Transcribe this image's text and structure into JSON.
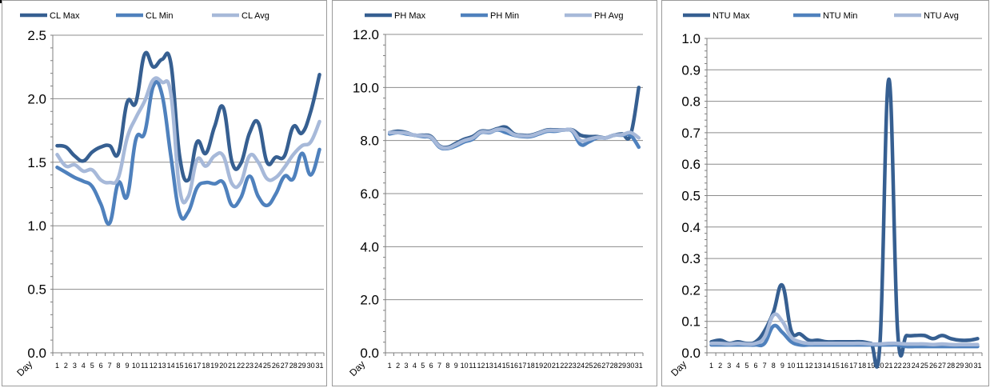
{
  "chart_data": [
    {
      "type": "line",
      "x_axis_name": "Day",
      "x": [
        1,
        2,
        3,
        4,
        5,
        6,
        7,
        8,
        9,
        10,
        11,
        12,
        13,
        14,
        15,
        16,
        17,
        18,
        19,
        20,
        21,
        22,
        23,
        24,
        25,
        26,
        27,
        28,
        29,
        30,
        31
      ],
      "x_labels": [
        "1",
        "2",
        "3",
        "4",
        "5",
        "6",
        "7",
        "8",
        "9",
        "10",
        "11",
        "12",
        "13",
        "14",
        "15",
        "16",
        "17",
        "18",
        "19",
        "20",
        "21",
        "22",
        "23",
        "24",
        "25",
        "26",
        "27",
        "28",
        "29",
        "30",
        "31"
      ],
      "ylim": [
        0,
        2.5
      ],
      "y_ticks": [
        0,
        0.5,
        1.0,
        1.5,
        2.0,
        2.5
      ],
      "y_tick_labels": [
        "0.0",
        "0.5",
        "1.0",
        "1.5",
        "2.0",
        "2.5"
      ],
      "grid": true,
      "legend_position": "top",
      "series": [
        {
          "name": "CL Max",
          "color": "#365f91",
          "values": [
            1.63,
            1.62,
            1.55,
            1.51,
            1.58,
            1.62,
            1.63,
            1.57,
            1.97,
            1.97,
            2.35,
            2.25,
            2.31,
            2.28,
            1.55,
            1.36,
            1.66,
            1.57,
            1.78,
            1.93,
            1.5,
            1.49,
            1.73,
            1.81,
            1.5,
            1.54,
            1.55,
            1.78,
            1.73,
            1.9,
            2.19
          ]
        },
        {
          "name": "CL Min",
          "color": "#4f81bd",
          "values": [
            1.46,
            1.42,
            1.38,
            1.35,
            1.31,
            1.17,
            1.02,
            1.34,
            1.23,
            1.68,
            1.73,
            2.1,
            2.03,
            1.55,
            1.1,
            1.11,
            1.3,
            1.34,
            1.33,
            1.34,
            1.16,
            1.22,
            1.39,
            1.23,
            1.16,
            1.25,
            1.39,
            1.37,
            1.57,
            1.4,
            1.6
          ]
        },
        {
          "name": "CL Avg",
          "color": "#a7b9d9",
          "values": [
            1.56,
            1.47,
            1.48,
            1.43,
            1.44,
            1.36,
            1.34,
            1.38,
            1.69,
            1.85,
            1.98,
            2.15,
            2.13,
            2.04,
            1.29,
            1.23,
            1.52,
            1.47,
            1.55,
            1.55,
            1.33,
            1.34,
            1.55,
            1.5,
            1.37,
            1.38,
            1.46,
            1.56,
            1.63,
            1.66,
            1.82
          ]
        }
      ]
    },
    {
      "type": "line",
      "x_axis_name": "Day",
      "x": [
        1,
        2,
        3,
        4,
        5,
        6,
        7,
        8,
        9,
        10,
        11,
        12,
        13,
        14,
        15,
        16,
        17,
        18,
        19,
        20,
        21,
        22,
        23,
        24,
        25,
        26,
        27,
        28,
        29,
        30,
        31
      ],
      "x_labels": [
        "1",
        "2",
        "3",
        "4",
        "5",
        "6",
        "7",
        "8",
        "9",
        "10",
        "11",
        "12",
        "13",
        "14",
        "15",
        "16",
        "17",
        "18",
        "19",
        "20",
        "21",
        "22",
        "23",
        "24",
        "25",
        "26",
        "27",
        "28",
        "29",
        "30",
        "31"
      ],
      "ylim": [
        0,
        12
      ],
      "y_ticks": [
        0,
        2,
        4,
        6,
        8,
        10,
        12
      ],
      "y_tick_labels": [
        "0.0",
        "2.0",
        "4.0",
        "6.0",
        "8.0",
        "10.0",
        "12.0"
      ],
      "grid": true,
      "legend_position": "top",
      "series": [
        {
          "name": "PH Max",
          "color": "#365f91",
          "values": [
            8.3,
            8.35,
            8.3,
            8.2,
            8.2,
            8.15,
            7.8,
            7.75,
            7.9,
            8.05,
            8.15,
            8.35,
            8.35,
            8.45,
            8.5,
            8.25,
            8.2,
            8.2,
            8.3,
            8.4,
            8.4,
            8.4,
            8.4,
            8.2,
            8.15,
            8.15,
            8.1,
            8.2,
            8.25,
            8.2,
            10.0
          ]
        },
        {
          "name": "PH Min",
          "color": "#4f81bd",
          "values": [
            8.25,
            8.3,
            8.25,
            8.2,
            8.15,
            8.1,
            7.75,
            7.7,
            7.8,
            7.95,
            8.05,
            8.3,
            8.3,
            8.4,
            8.3,
            8.2,
            8.15,
            8.15,
            8.25,
            8.35,
            8.35,
            8.4,
            8.35,
            7.85,
            7.95,
            8.1,
            8.1,
            8.2,
            8.2,
            8.2,
            7.75
          ]
        },
        {
          "name": "PH Avg",
          "color": "#a7b9d9",
          "values": [
            8.3,
            8.3,
            8.28,
            8.2,
            8.18,
            8.12,
            7.78,
            7.72,
            7.85,
            8.0,
            8.1,
            8.32,
            8.32,
            8.42,
            8.4,
            8.22,
            8.18,
            8.18,
            8.28,
            8.38,
            8.38,
            8.4,
            8.38,
            8.0,
            8.05,
            8.12,
            8.1,
            8.2,
            8.22,
            8.3,
            8.1
          ]
        }
      ]
    },
    {
      "type": "line",
      "x_axis_name": "Day",
      "x": [
        1,
        2,
        3,
        4,
        5,
        6,
        7,
        8,
        9,
        10,
        11,
        12,
        13,
        14,
        15,
        16,
        17,
        18,
        19,
        20,
        21,
        22,
        23,
        24,
        25,
        26,
        27,
        28,
        29,
        30,
        31
      ],
      "x_labels": [
        "1",
        "2",
        "3",
        "4",
        "5",
        "6",
        "7",
        "8",
        "9",
        "10",
        "11",
        "12",
        "13",
        "14",
        "15",
        "16",
        "17",
        "18",
        "19",
        "20",
        "21",
        "22",
        "23",
        "24",
        "25",
        "26",
        "27",
        "28",
        "29",
        "30",
        "31"
      ],
      "ylim": [
        0,
        1.0
      ],
      "y_ticks": [
        0,
        0.1,
        0.2,
        0.3,
        0.4,
        0.5,
        0.6,
        0.7,
        0.8,
        0.9,
        1.0
      ],
      "y_tick_labels": [
        "0.0",
        "0.1",
        "0.2",
        "0.3",
        "0.4",
        "0.5",
        "0.6",
        "0.7",
        "0.8",
        "0.9",
        "1.0"
      ],
      "grid": true,
      "legend_position": "top",
      "series": [
        {
          "name": "NTU Max",
          "color": "#365f91",
          "values": [
            0.035,
            0.04,
            0.03,
            0.035,
            0.03,
            0.035,
            0.07,
            0.13,
            0.215,
            0.07,
            0.06,
            0.04,
            0.04,
            0.035,
            0.035,
            0.035,
            0.035,
            0.035,
            0.03,
            0.03,
            0.87,
            0.065,
            0.055,
            0.055,
            0.055,
            0.045,
            0.055,
            0.045,
            0.04,
            0.04,
            0.045
          ]
        },
        {
          "name": "NTU Min",
          "color": "#4f81bd",
          "values": [
            0.025,
            0.025,
            0.025,
            0.025,
            0.025,
            0.025,
            0.03,
            0.085,
            0.065,
            0.035,
            0.025,
            0.025,
            0.025,
            0.025,
            0.025,
            0.025,
            0.025,
            0.025,
            0.025,
            0.025,
            0.025,
            0.025,
            0.02,
            0.02,
            0.02,
            0.02,
            0.02,
            0.02,
            0.02,
            0.02,
            0.02
          ]
        },
        {
          "name": "NTU Avg",
          "color": "#a7b9d9",
          "values": [
            0.03,
            0.03,
            0.028,
            0.03,
            0.028,
            0.03,
            0.05,
            0.12,
            0.1,
            0.05,
            0.035,
            0.03,
            0.03,
            0.03,
            0.03,
            0.03,
            0.03,
            0.03,
            0.028,
            0.028,
            0.03,
            0.03,
            0.028,
            0.028,
            0.028,
            0.026,
            0.028,
            0.026,
            0.026,
            0.026,
            0.026
          ]
        }
      ]
    }
  ]
}
